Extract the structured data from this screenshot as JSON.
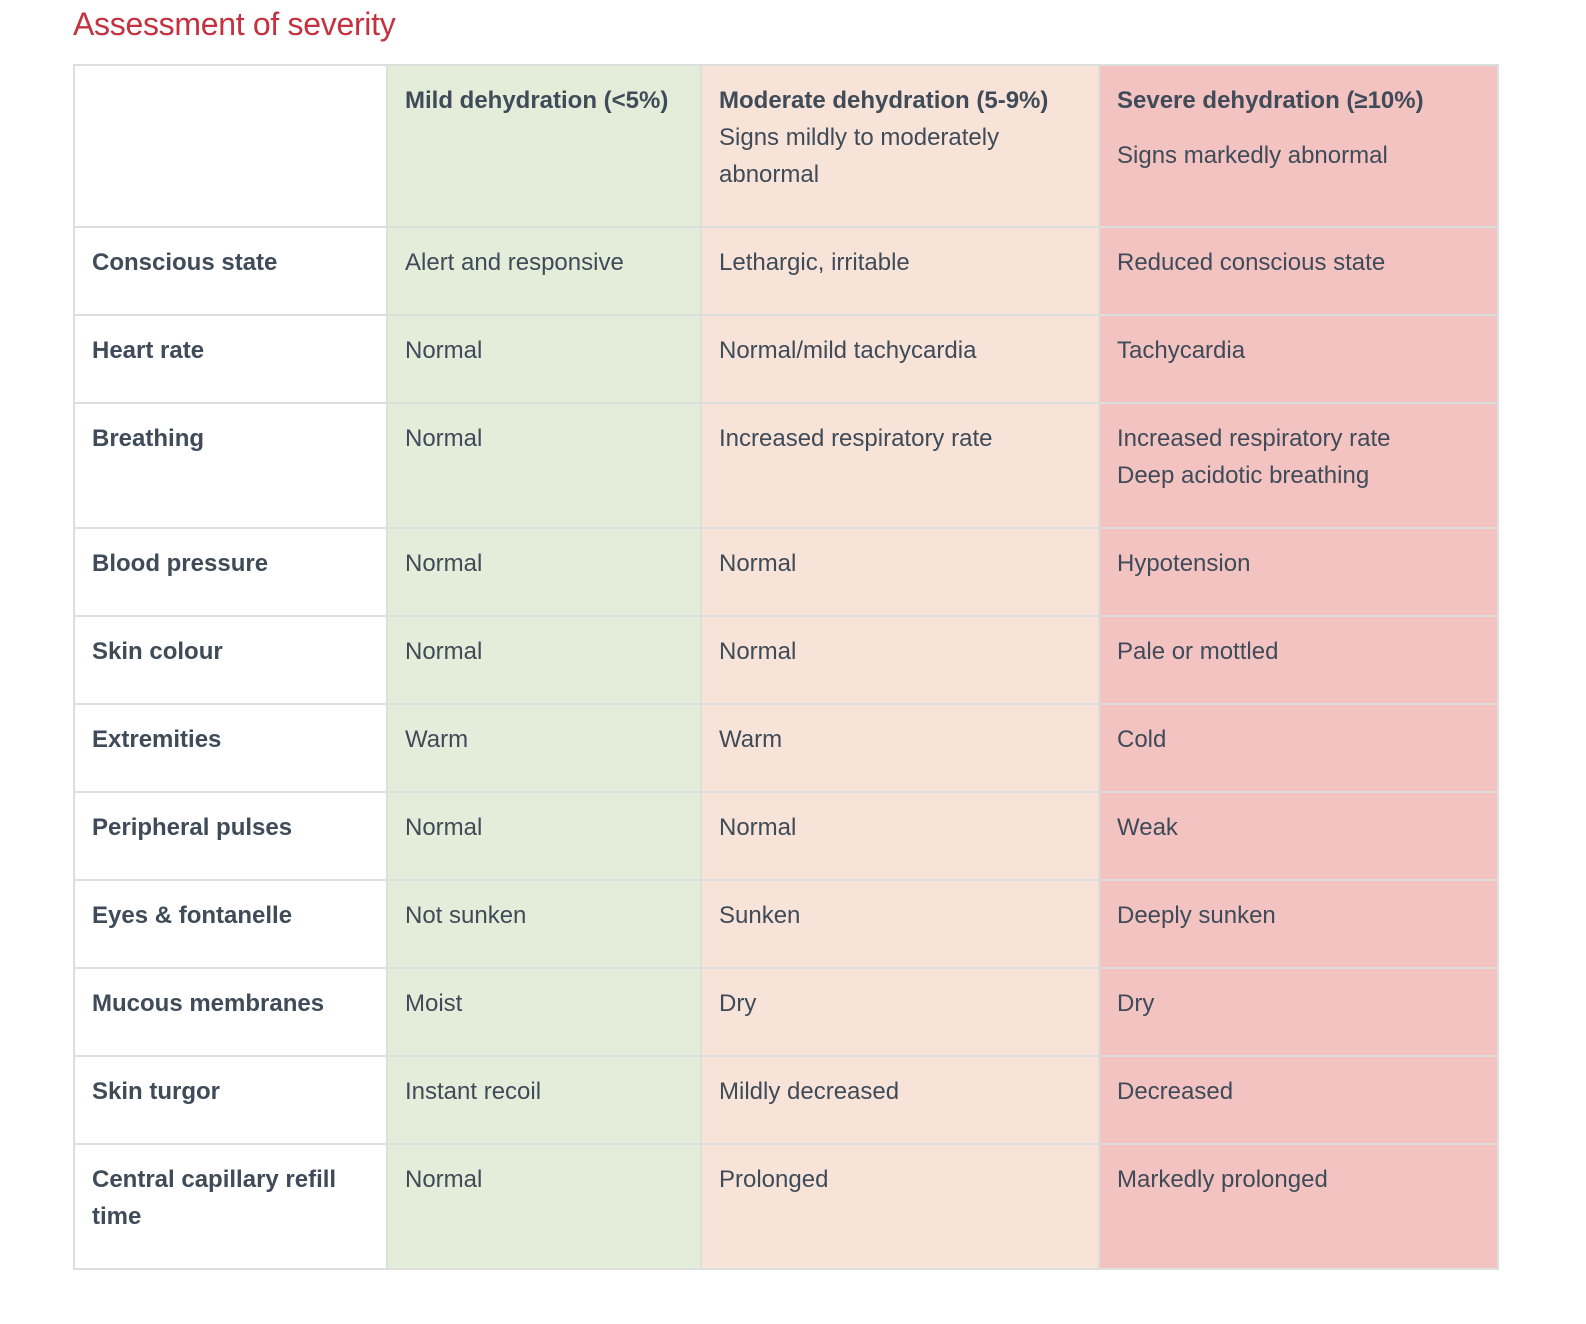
{
  "title": "Assessment of severity",
  "table": {
    "header": [
      {
        "title": "Mild dehydration (<5%)"
      },
      {
        "title": "Moderate dehydration (5-9%)",
        "subtitle": "Signs mildly to moderately abnormal"
      },
      {
        "title": "Severe dehydration (≥10%)",
        "subtitle": "Signs markedly abnormal"
      }
    ],
    "rows": [
      [
        "Conscious state",
        "Alert and responsive",
        "Lethargic, irritable",
        "Reduced conscious state"
      ],
      [
        "Heart rate",
        "Normal",
        "Normal/mild tachycardia",
        "Tachycardia"
      ],
      [
        "Breathing",
        "Normal",
        "Increased respiratory rate",
        [
          "Increased respiratory rate",
          "Deep acidotic breathing"
        ]
      ],
      [
        "Blood pressure",
        "Normal",
        "Normal",
        "Hypotension"
      ],
      [
        "Skin colour",
        "Normal",
        "Normal",
        "Pale or mottled"
      ],
      [
        "Extremities",
        "Warm",
        "Warm",
        "Cold"
      ],
      [
        "Peripheral pulses",
        "Normal",
        "Normal",
        "Weak"
      ],
      [
        "Eyes & fontanelle",
        "Not sunken",
        "Sunken",
        "Deeply sunken"
      ],
      [
        "Mucous membranes",
        "Moist",
        "Dry",
        "Dry"
      ],
      [
        "Skin turgor",
        "Instant recoil",
        "Mildly decreased",
        "Decreased"
      ],
      [
        "Central capillary refill time",
        "Normal",
        "Prolonged",
        "Markedly prolonged"
      ]
    ]
  }
}
